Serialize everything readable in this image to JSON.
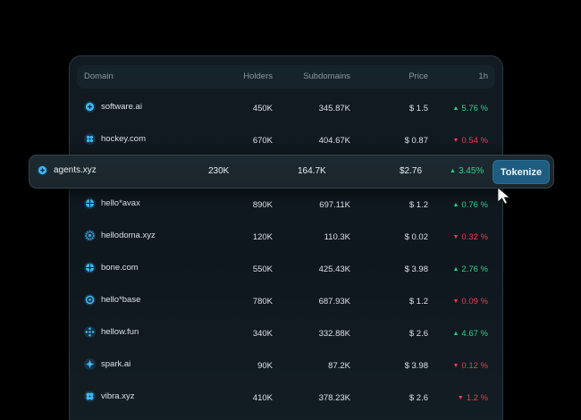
{
  "table": {
    "columns": {
      "domain": "Domain",
      "holders": "Holders",
      "subdomains": "Subdomains",
      "price": "Price",
      "change_1h": "1h"
    },
    "rows": [
      {
        "domain": "software.ai",
        "holders": "450K",
        "subdomains": "345.87K",
        "price": "$ 1.5",
        "change": "5.76 %",
        "trend": "up",
        "icon": "plus-circle-icon"
      },
      {
        "domain": "hockey.com",
        "holders": "670K",
        "subdomains": "404.67K",
        "price": "$ 0.87",
        "change": "0.54 %",
        "trend": "down",
        "icon": "dots-cluster-icon"
      },
      {
        "domain": "hello*avax",
        "holders": "890K",
        "subdomains": "697.11K",
        "price": "$ 1.2",
        "change": "0.76 %",
        "trend": "up",
        "icon": "cross-dots-icon"
      },
      {
        "domain": "hellodoma.xyz",
        "holders": "120K",
        "subdomains": "110.3K",
        "price": "$ 0.02",
        "change": "0.32 %",
        "trend": "down",
        "icon": "gear-icon"
      },
      {
        "domain": "bone.com",
        "holders": "550K",
        "subdomains": "425.43K",
        "price": "$ 3.98",
        "change": "2.76 %",
        "trend": "up",
        "icon": "aperture-icon"
      },
      {
        "domain": "hello*base",
        "holders": "780K",
        "subdomains": "687.93K",
        "price": "$ 1.2",
        "change": "0.09 %",
        "trend": "down",
        "icon": "ring-icon"
      },
      {
        "domain": "hellow.fun",
        "holders": "340K",
        "subdomains": "332.88K",
        "price": "$ 2.6",
        "change": "4.67 %",
        "trend": "up",
        "icon": "dotted-circle-icon"
      },
      {
        "domain": "spark.ai",
        "holders": "90K",
        "subdomains": "87.2K",
        "price": "$ 3.98",
        "change": "0.12 %",
        "trend": "down",
        "icon": "spark-icon"
      },
      {
        "domain": "vibra.xyz",
        "holders": "410K",
        "subdomains": "378.23K",
        "price": "$ 2.6",
        "change": "1.2 %",
        "trend": "down",
        "icon": "flower-icon"
      }
    ]
  },
  "highlighted_row": {
    "domain": "agents.xyz",
    "holders": "230K",
    "subdomains": "164.7K",
    "price": "$2.76",
    "change": "3.45%",
    "trend": "up",
    "action_label": "Tokenize"
  },
  "glyphs": {
    "up": "▲",
    "down": "▼"
  },
  "colors": {
    "up": "#2fcf8e",
    "down": "#ec3b50",
    "accent": "#1f5d80",
    "icon": "#3fb6f0"
  }
}
